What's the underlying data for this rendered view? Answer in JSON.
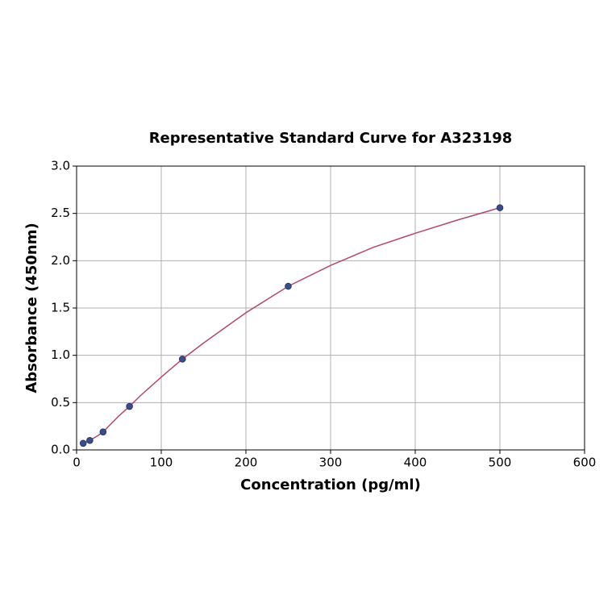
{
  "chart_data": {
    "type": "scatter",
    "title": "Representative Standard Curve for A323198",
    "x_label": "Concentration (pg/ml)",
    "y_label": "Absorbance (450nm)",
    "xlim": [
      0,
      600
    ],
    "xticks": [
      0,
      100,
      200,
      300,
      400,
      500,
      600
    ],
    "ylim": [
      0,
      3
    ],
    "yticks": [
      {
        "value": 0,
        "label": "0.0"
      },
      0.5,
      {
        "value": 1,
        "label": "1.0"
      },
      1.5,
      {
        "value": 2,
        "label": "2.0"
      },
      2.5,
      {
        "value": 3,
        "label": "3.0"
      }
    ],
    "grid": true,
    "series": [
      {
        "type": "scatter",
        "color": "#3b4c8c",
        "x": [
          7.8,
          15.6,
          31.25,
          62.5,
          125,
          250,
          500
        ],
        "values": [
          0.07,
          0.1,
          0.19,
          0.46,
          0.96,
          1.73,
          2.56
        ]
      },
      {
        "type": "line",
        "color": "#b5476b",
        "x": [
          7.8,
          15.6,
          25,
          31.25,
          50,
          62.5,
          75,
          100,
          125,
          150,
          200,
          250,
          300,
          350,
          400,
          450,
          500
        ],
        "values": [
          0.07,
          0.1,
          0.15,
          0.19,
          0.36,
          0.46,
          0.57,
          0.77,
          0.96,
          1.13,
          1.45,
          1.73,
          1.95,
          2.14,
          2.29,
          2.43,
          2.56
        ]
      }
    ]
  }
}
